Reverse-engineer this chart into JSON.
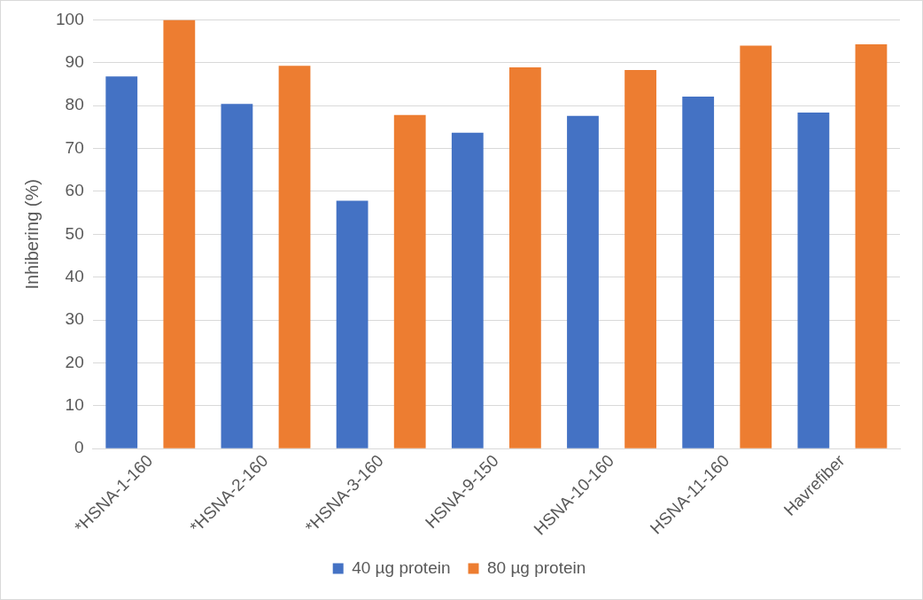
{
  "chart_data": {
    "type": "bar",
    "ylabel": "Inhibering (%)",
    "categories": [
      "*HSNA-1-160",
      "*HSNA-2-160",
      "*HSNA-3-160",
      "HSNA-9-150",
      "HSNA-10-160",
      "HSNA-11-160",
      "Havrefiber"
    ],
    "series": [
      {
        "name": "40 µg protein",
        "color": "#4472c4",
        "values": [
          86.8,
          80.4,
          57.8,
          73.7,
          77.6,
          82.1,
          78.4
        ]
      },
      {
        "name": "80 µg protein",
        "color": "#ed7d31",
        "values": [
          100,
          89.3,
          77.8,
          88.9,
          88.3,
          94.0,
          94.3
        ]
      }
    ],
    "ylim": [
      0,
      100
    ],
    "yticks": [
      0,
      10,
      20,
      30,
      40,
      50,
      60,
      70,
      80,
      90,
      100
    ],
    "grid": "y",
    "legend": "bottom"
  }
}
